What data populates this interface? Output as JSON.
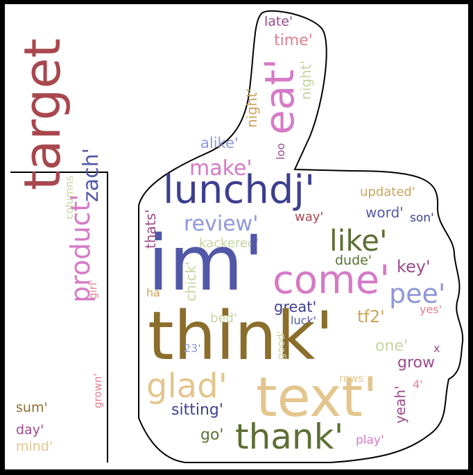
{
  "colors": {
    "background": "#ffffff",
    "frame": "#000000",
    "outline": "#000000",
    "palette": {
      "brown_red": "#a8474e",
      "olive_brown": "#8b6d2c",
      "indigo": "#3d3f8f",
      "slate_blue": "#5258a8",
      "orchid": "#d57ac6",
      "tan": "#e3c68d",
      "moss": "#5d6f35",
      "lavender": "#8f97d8",
      "pink": "#e07f8e",
      "sage": "#c6d4a0",
      "plum": "#9c4a8a",
      "khaki": "#c9a45a"
    }
  },
  "words": [
    {
      "text": "target",
      "color": "#a8474e"
    },
    {
      "text": "product'",
      "color": "#d57ac6"
    },
    {
      "text": "zach'",
      "color": "#5258a8"
    },
    {
      "text": "columns",
      "color": "#c6d4a0"
    },
    {
      "text": "girl'",
      "color": "#e07f8e"
    },
    {
      "text": "grown'",
      "color": "#e07f8e"
    },
    {
      "text": "sum'",
      "color": "#8b6d2c"
    },
    {
      "text": "day'",
      "color": "#9c4a8a"
    },
    {
      "text": "mind'",
      "color": "#e3c68d"
    },
    {
      "text": "late'",
      "color": "#9c4a8a"
    },
    {
      "text": "time'",
      "color": "#e07f8e"
    },
    {
      "text": "eat'",
      "color": "#d57ac6"
    },
    {
      "text": "night'",
      "color": "#c6d4a0"
    },
    {
      "text": "night'",
      "color": "#c9a45a"
    },
    {
      "text": "alike'",
      "color": "#8f97d8"
    },
    {
      "text": "loo",
      "color": "#9c4a8a"
    },
    {
      "text": "make'",
      "color": "#d57ac6"
    },
    {
      "text": "lunchdj'",
      "color": "#3d3f8f"
    },
    {
      "text": "updated'",
      "color": "#c9a45a"
    },
    {
      "text": "thats'",
      "color": "#9c4a8a"
    },
    {
      "text": "review'",
      "color": "#8f97d8"
    },
    {
      "text": "way'",
      "color": "#a8474e"
    },
    {
      "text": "word'",
      "color": "#5258a8"
    },
    {
      "text": "son'",
      "color": "#3d3f8f"
    },
    {
      "text": "like'",
      "color": "#5d6f35"
    },
    {
      "text": "kackered'",
      "color": "#c6d4a0"
    },
    {
      "text": "im'",
      "color": "#5258a8"
    },
    {
      "text": "come'",
      "color": "#d57ac6"
    },
    {
      "text": "dude'",
      "color": "#5d6f35"
    },
    {
      "text": "key'",
      "color": "#9c4a8a"
    },
    {
      "text": "chick'",
      "color": "#c6d4a0"
    },
    {
      "text": "ha",
      "color": "#c9a45a"
    },
    {
      "text": "pee'",
      "color": "#8f97d8"
    },
    {
      "text": "great'",
      "color": "#3d3f8f"
    },
    {
      "text": "yes'",
      "color": "#e07f8e"
    },
    {
      "text": "bed'",
      "color": "#c6d4a0"
    },
    {
      "text": "luck'",
      "color": "#5258a8"
    },
    {
      "text": "tf2'",
      "color": "#c9a45a"
    },
    {
      "text": "think'",
      "color": "#8b6d2c"
    },
    {
      "text": "23'",
      "color": "#8f97d8"
    },
    {
      "text": "good'",
      "color": "#c6d4a0"
    },
    {
      "text": "one'",
      "color": "#c6d4a0"
    },
    {
      "text": "x",
      "color": "#9c4a8a"
    },
    {
      "text": "grow",
      "color": "#9c4a8a"
    },
    {
      "text": "rows",
      "color": "#e3c68d"
    },
    {
      "text": "4'",
      "color": "#e07f8e"
    },
    {
      "text": "yeah'",
      "color": "#9c4a8a"
    },
    {
      "text": "glad'",
      "color": "#e3c68d"
    },
    {
      "text": "text'",
      "color": "#e3c68d"
    },
    {
      "text": "sitting'",
      "color": "#3d3f8f"
    },
    {
      "text": "go'",
      "color": "#5d6f35"
    },
    {
      "text": "thank'",
      "color": "#5d6f35"
    },
    {
      "text": "play'",
      "color": "#d57ac6"
    }
  ]
}
